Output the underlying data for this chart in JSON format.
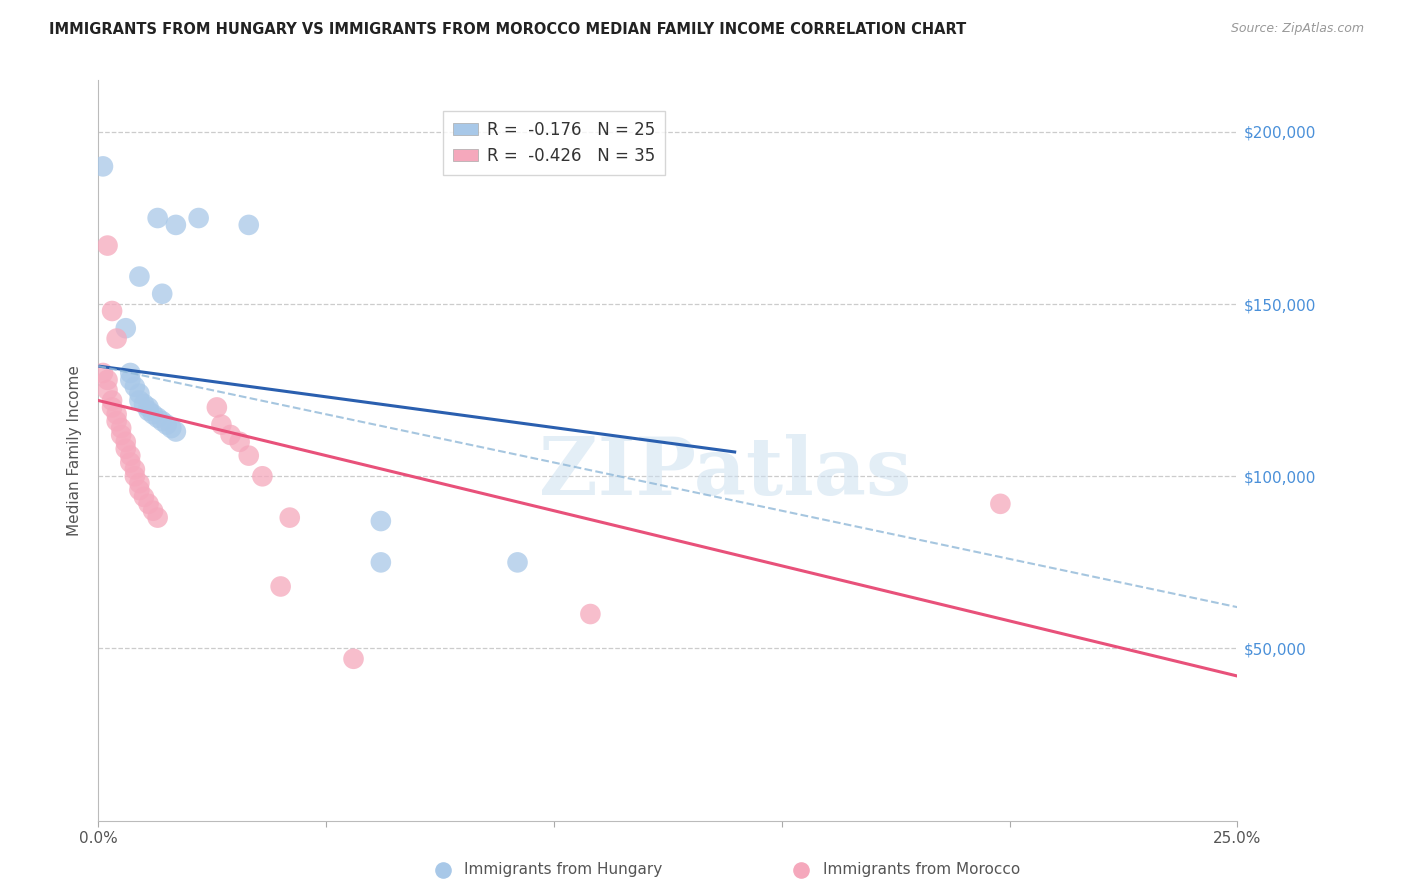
{
  "title": "IMMIGRANTS FROM HUNGARY VS IMMIGRANTS FROM MOROCCO MEDIAN FAMILY INCOME CORRELATION CHART",
  "source": "Source: ZipAtlas.com",
  "ylabel": "Median Family Income",
  "xlim": [
    0.0,
    0.25
  ],
  "ylim": [
    0,
    215000
  ],
  "yticks": [
    0,
    50000,
    100000,
    150000,
    200000
  ],
  "xticks": [
    0.0,
    0.05,
    0.1,
    0.15,
    0.2,
    0.25
  ],
  "xtick_labels": [
    "0.0%",
    "",
    "",
    "",
    "",
    "25.0%"
  ],
  "hungary_color": "#a8c8e8",
  "morocco_color": "#f5a8bc",
  "hungary_line_color": "#2a5faf",
  "morocco_line_color": "#e8517a",
  "dashed_line_color": "#90b8d8",
  "right_label_color": "#4a90d9",
  "legend_r_color_hungary": "#2a5faf",
  "legend_r_color_morocco": "#e8517a",
  "legend_hungary_r": "-0.176",
  "legend_hungary_n": "25",
  "legend_morocco_r": "-0.426",
  "legend_morocco_n": "35",
  "watermark": "ZIPatlas",
  "hungary_data": [
    [
      0.001,
      190000
    ],
    [
      0.013,
      175000
    ],
    [
      0.017,
      173000
    ],
    [
      0.022,
      175000
    ],
    [
      0.033,
      173000
    ],
    [
      0.009,
      158000
    ],
    [
      0.014,
      153000
    ],
    [
      0.006,
      143000
    ],
    [
      0.007,
      130000
    ],
    [
      0.007,
      128000
    ],
    [
      0.008,
      126000
    ],
    [
      0.009,
      124000
    ],
    [
      0.009,
      122000
    ],
    [
      0.01,
      121000
    ],
    [
      0.011,
      120000
    ],
    [
      0.011,
      119000
    ],
    [
      0.012,
      118000
    ],
    [
      0.013,
      117000
    ],
    [
      0.014,
      116000
    ],
    [
      0.015,
      115000
    ],
    [
      0.016,
      114000
    ],
    [
      0.017,
      113000
    ],
    [
      0.062,
      87000
    ],
    [
      0.062,
      75000
    ],
    [
      0.092,
      75000
    ]
  ],
  "morocco_data": [
    [
      0.001,
      130000
    ],
    [
      0.002,
      128000
    ],
    [
      0.002,
      125000
    ],
    [
      0.003,
      122000
    ],
    [
      0.003,
      120000
    ],
    [
      0.004,
      118000
    ],
    [
      0.004,
      116000
    ],
    [
      0.005,
      114000
    ],
    [
      0.005,
      112000
    ],
    [
      0.006,
      110000
    ],
    [
      0.006,
      108000
    ],
    [
      0.007,
      106000
    ],
    [
      0.007,
      104000
    ],
    [
      0.008,
      102000
    ],
    [
      0.008,
      100000
    ],
    [
      0.009,
      98000
    ],
    [
      0.009,
      96000
    ],
    [
      0.01,
      94000
    ],
    [
      0.011,
      92000
    ],
    [
      0.012,
      90000
    ],
    [
      0.013,
      88000
    ],
    [
      0.002,
      167000
    ],
    [
      0.003,
      148000
    ],
    [
      0.004,
      140000
    ],
    [
      0.026,
      120000
    ],
    [
      0.027,
      115000
    ],
    [
      0.029,
      112000
    ],
    [
      0.031,
      110000
    ],
    [
      0.033,
      106000
    ],
    [
      0.036,
      100000
    ],
    [
      0.042,
      88000
    ],
    [
      0.056,
      47000
    ],
    [
      0.108,
      60000
    ],
    [
      0.198,
      92000
    ],
    [
      0.04,
      68000
    ]
  ],
  "hungary_trend_x": [
    0.0,
    0.14
  ],
  "hungary_trend_y": [
    132000,
    107000
  ],
  "morocco_trend_x": [
    0.0,
    0.25
  ],
  "morocco_trend_y": [
    122000,
    42000
  ],
  "dashed_trend_x": [
    0.0,
    0.25
  ],
  "dashed_trend_y": [
    132000,
    62000
  ]
}
